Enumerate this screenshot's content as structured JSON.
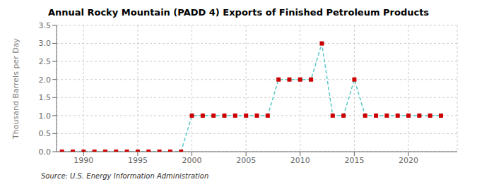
{
  "chart_data": {
    "type": "line",
    "title": "Annual Rocky Mountain (PADD 4) Exports of Finished Petroleum Products",
    "ylabel": "Thousand Barrels per Day",
    "annotations": [
      "Source: U.S. Energy Information Administration"
    ],
    "x": [
      1988,
      1989,
      1990,
      1991,
      1992,
      1993,
      1994,
      1995,
      1996,
      1997,
      1998,
      1999,
      2000,
      2001,
      2002,
      2003,
      2004,
      2005,
      2006,
      2007,
      2008,
      2009,
      2010,
      2011,
      2012,
      2013,
      2014,
      2015,
      2016,
      2017,
      2018,
      2019,
      2020,
      2021,
      2022,
      2023
    ],
    "series": [
      {
        "type": "line",
        "color": "#5bc8c8",
        "line_style": "dashed",
        "values": [
          0.0,
          0.0,
          0.0,
          0.0,
          0.0,
          0.0,
          0.0,
          0.0,
          0.0,
          0.0,
          0.0,
          0.0,
          1.0,
          1.0,
          1.0,
          1.0,
          1.0,
          1.0,
          1.0,
          1.0,
          2.0,
          2.0,
          2.0,
          2.0,
          3.0,
          1.0,
          1.0,
          2.0,
          1.0,
          1.0,
          1.0,
          1.0,
          1.0,
          1.0,
          1.0,
          1.0
        ]
      },
      {
        "type": "scatter",
        "color": "#cc0000",
        "marker": "square",
        "values": [
          0.0,
          0.0,
          0.0,
          0.0,
          0.0,
          0.0,
          0.0,
          0.0,
          0.0,
          0.0,
          0.0,
          0.0,
          1.0,
          1.0,
          1.0,
          1.0,
          1.0,
          1.0,
          1.0,
          1.0,
          2.0,
          2.0,
          2.0,
          2.0,
          3.0,
          1.0,
          1.0,
          2.0,
          1.0,
          1.0,
          1.0,
          1.0,
          1.0,
          1.0,
          1.0,
          1.0
        ]
      }
    ],
    "xlim": [
      1987.5,
      2024.5
    ],
    "xticks": [
      1990,
      1995,
      2000,
      2005,
      2010,
      2015,
      2020
    ],
    "ylim": [
      0.0,
      3.5
    ],
    "yticks": [
      {
        "value": 0.0,
        "label": "0.0"
      },
      0.5,
      {
        "value": 1.0,
        "label": "1.0"
      },
      1.5,
      {
        "value": 2.0,
        "label": "2.0"
      },
      2.5,
      {
        "value": 3.0,
        "label": "3.0"
      },
      3.5
    ],
    "grid": true
  }
}
